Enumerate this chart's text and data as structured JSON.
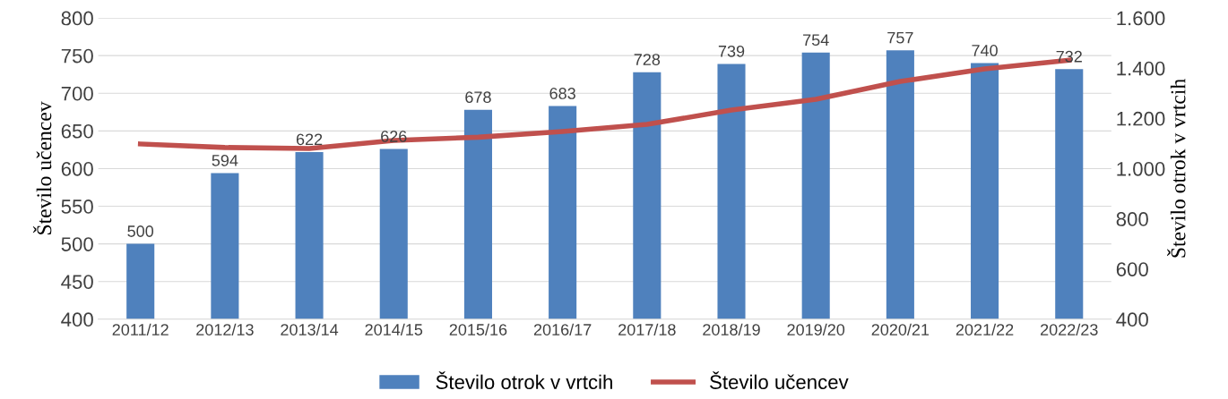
{
  "chart_data": {
    "type": "bar",
    "ylabel": "Število učencev",
    "y2label": "Število otrok v vrtcih",
    "categories": [
      "2011/12",
      "2012/13",
      "2013/14",
      "2014/15",
      "2015/16",
      "2016/17",
      "2017/18",
      "2018/19",
      "2019/20",
      "2020/21",
      "2021/22",
      "2022/23"
    ],
    "series": [
      {
        "name": "Število otrok v vrtcih",
        "color": "#4f81bd",
        "values": [
          500,
          594,
          622,
          626,
          678,
          683,
          728,
          739,
          754,
          757,
          740,
          732
        ],
        "value_labels": [
          "500",
          "594",
          "622",
          "626",
          "678",
          "683",
          "728",
          "739",
          "754",
          "757",
          "740",
          "732"
        ]
      },
      {
        "name": "Število učencev",
        "type": "line",
        "axis": "y2",
        "color": "#c0504d",
        "values": [
          1098,
          1084,
          1080,
          1112,
          1125,
          1148,
          1176,
          1233,
          1276,
          1347,
          1397,
          1432
        ]
      }
    ],
    "ylim": [
      400,
      800
    ],
    "yticks": [
      400,
      450,
      500,
      550,
      600,
      650,
      700,
      750,
      800
    ],
    "y2lim": [
      400,
      1600
    ],
    "y2ticks": [
      400,
      600,
      800,
      {
        "value": 1000,
        "label": "1.000"
      },
      {
        "value": 1200,
        "label": "1.200"
      },
      {
        "value": 1400,
        "label": "1.400"
      },
      {
        "value": 1600,
        "label": "1.600"
      }
    ],
    "grid": "y",
    "legend": "bottom",
    "marker": "none",
    "line_style": "solid"
  }
}
